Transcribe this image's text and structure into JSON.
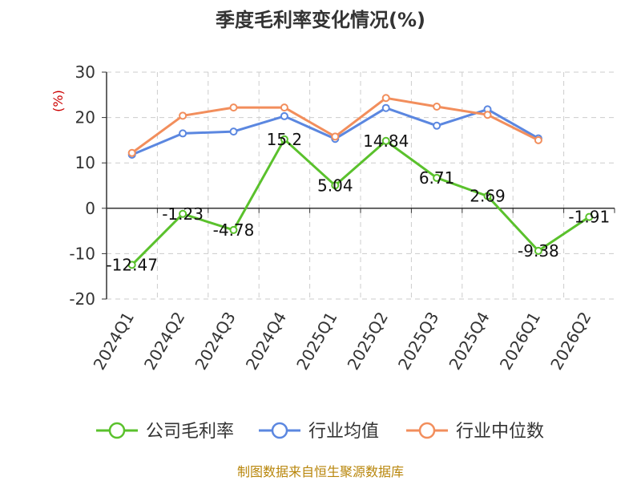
{
  "colors": {
    "company": "#5ac12c",
    "industry_avg": "#5b87e0",
    "industry_median": "#f28e5c",
    "unit": "#cc0000",
    "source": "#b8860b",
    "grid": "#cccccc",
    "axis": "#333333"
  },
  "source_text": "制图数据来自恒生聚源数据库",
  "chart_data": {
    "type": "line",
    "title": "季度毛利率变化情况(%)",
    "ylabel": "(%)",
    "xlabel": "",
    "categories": [
      "2024Q1",
      "2024Q2",
      "2024Q3",
      "2024Q4",
      "2025Q1",
      "2025Q2",
      "2025Q3",
      "2025Q4",
      "2026Q1",
      "2026Q2"
    ],
    "ylim": [
      -20,
      30
    ],
    "yticks": [
      -20,
      -10,
      0,
      10,
      20,
      30
    ],
    "grid": true,
    "legend_position": "bottom",
    "series": [
      {
        "name": "公司毛利率",
        "color": "#5ac12c",
        "show_labels": true,
        "values": [
          -12.47,
          -1.23,
          -4.78,
          15.2,
          5.04,
          14.84,
          6.71,
          2.69,
          -9.38,
          -1.91
        ]
      },
      {
        "name": "行业均值",
        "color": "#5b87e0",
        "show_labels": false,
        "values": [
          11.8,
          16.5,
          16.9,
          20.3,
          15.3,
          22.1,
          18.2,
          21.8,
          15.4,
          null
        ]
      },
      {
        "name": "行业中位数",
        "color": "#f28e5c",
        "show_labels": false,
        "values": [
          12.2,
          20.4,
          22.2,
          22.2,
          15.8,
          24.3,
          22.4,
          20.6,
          15.0,
          null
        ]
      }
    ]
  }
}
